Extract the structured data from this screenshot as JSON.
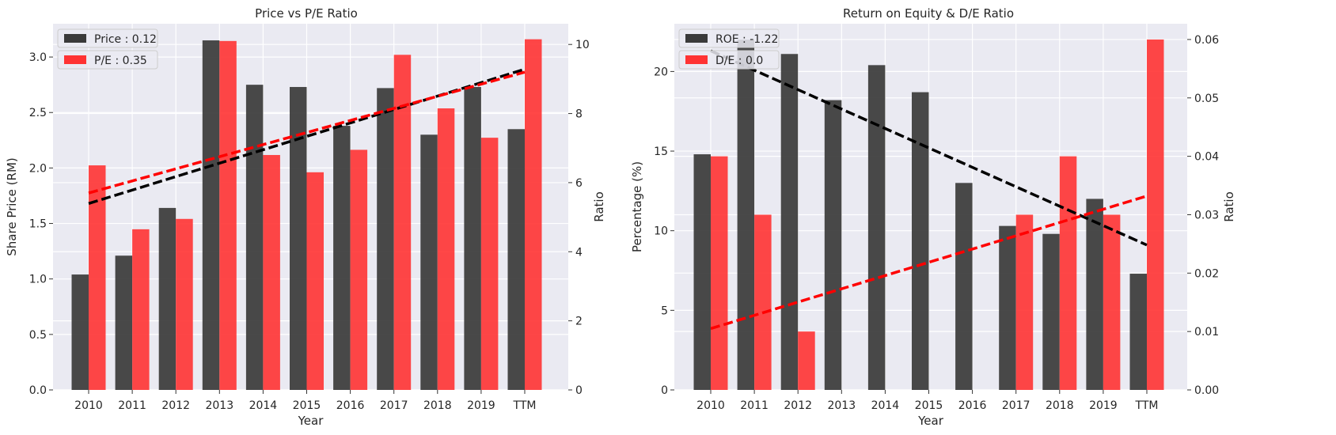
{
  "chart_data": [
    {
      "type": "bar",
      "title": "Price vs P/E Ratio",
      "xlabel": "Year",
      "ylabel": "Share Price (RM)",
      "y2label": "Ratio",
      "categories": [
        "2010",
        "2011",
        "2012",
        "2013",
        "2014",
        "2015",
        "2016",
        "2017",
        "2018",
        "2019",
        "TTM"
      ],
      "ylim": [
        0,
        3.3
      ],
      "yticks": [
        "0.0",
        "0.5",
        "1.0",
        "1.5",
        "2.0",
        "2.5",
        "3.0"
      ],
      "y2lim": [
        0,
        10.6
      ],
      "y2ticks": [
        "0",
        "2",
        "4",
        "6",
        "8",
        "10"
      ],
      "grid": true,
      "legend_position": "top-left",
      "series": [
        {
          "name": "Price : 0.12",
          "axis": "left",
          "color": "#3a3a3a",
          "values": [
            1.04,
            1.21,
            1.64,
            3.15,
            2.75,
            2.73,
            2.38,
            2.72,
            2.3,
            2.73,
            2.35
          ]
        },
        {
          "name": "P/E : 0.35",
          "axis": "right",
          "color": "#ff3333",
          "values": [
            6.5,
            4.65,
            4.95,
            10.1,
            6.8,
            6.3,
            6.95,
            9.7,
            8.15,
            7.3,
            10.15
          ]
        }
      ],
      "trendlines": [
        {
          "series": "Price : 0.12",
          "axis": "left",
          "color": "#000000",
          "from": [
            0,
            1.68
          ],
          "to": [
            10,
            2.89
          ]
        },
        {
          "series": "P/E : 0.35",
          "axis": "right",
          "color": "#ff0000",
          "from": [
            0,
            5.7
          ],
          "to": [
            10,
            9.2
          ]
        }
      ]
    },
    {
      "type": "bar",
      "title": "Return on Equity & D/E Ratio",
      "xlabel": "Year",
      "ylabel": "Percentage (%)",
      "y2label": "Ratio",
      "categories": [
        "2010",
        "2011",
        "2012",
        "2013",
        "2014",
        "2015",
        "2016",
        "2017",
        "2018",
        "2019",
        "TTM"
      ],
      "ylim": [
        0,
        23.0
      ],
      "yticks": [
        "0",
        "5",
        "10",
        "15",
        "20"
      ],
      "y2lim": [
        0,
        0.0627
      ],
      "y2ticks": [
        "0.00",
        "0.01",
        "0.02",
        "0.03",
        "0.04",
        "0.05",
        "0.06"
      ],
      "grid": true,
      "legend_position": "top-left",
      "series": [
        {
          "name": "ROE : -1.22",
          "axis": "left",
          "color": "#3a3a3a",
          "values": [
            14.8,
            22.0,
            21.1,
            18.2,
            20.4,
            18.7,
            13.0,
            10.3,
            9.8,
            12.0,
            7.3
          ]
        },
        {
          "name": "D/E : 0.0",
          "axis": "right",
          "color": "#ff3333",
          "values": [
            0.04,
            0.03,
            0.01,
            0,
            0,
            0,
            0,
            0.03,
            0.04,
            0.03,
            0.06
          ]
        }
      ],
      "trendlines": [
        {
          "series": "ROE : -1.22",
          "axis": "left",
          "color": "#000000",
          "from": [
            0,
            21.3
          ],
          "to": [
            10,
            9.1
          ]
        },
        {
          "series": "D/E : 0.0",
          "axis": "right",
          "color": "#ff0000",
          "from": [
            0,
            0.0105
          ],
          "to": [
            10,
            0.0332
          ]
        }
      ]
    }
  ]
}
